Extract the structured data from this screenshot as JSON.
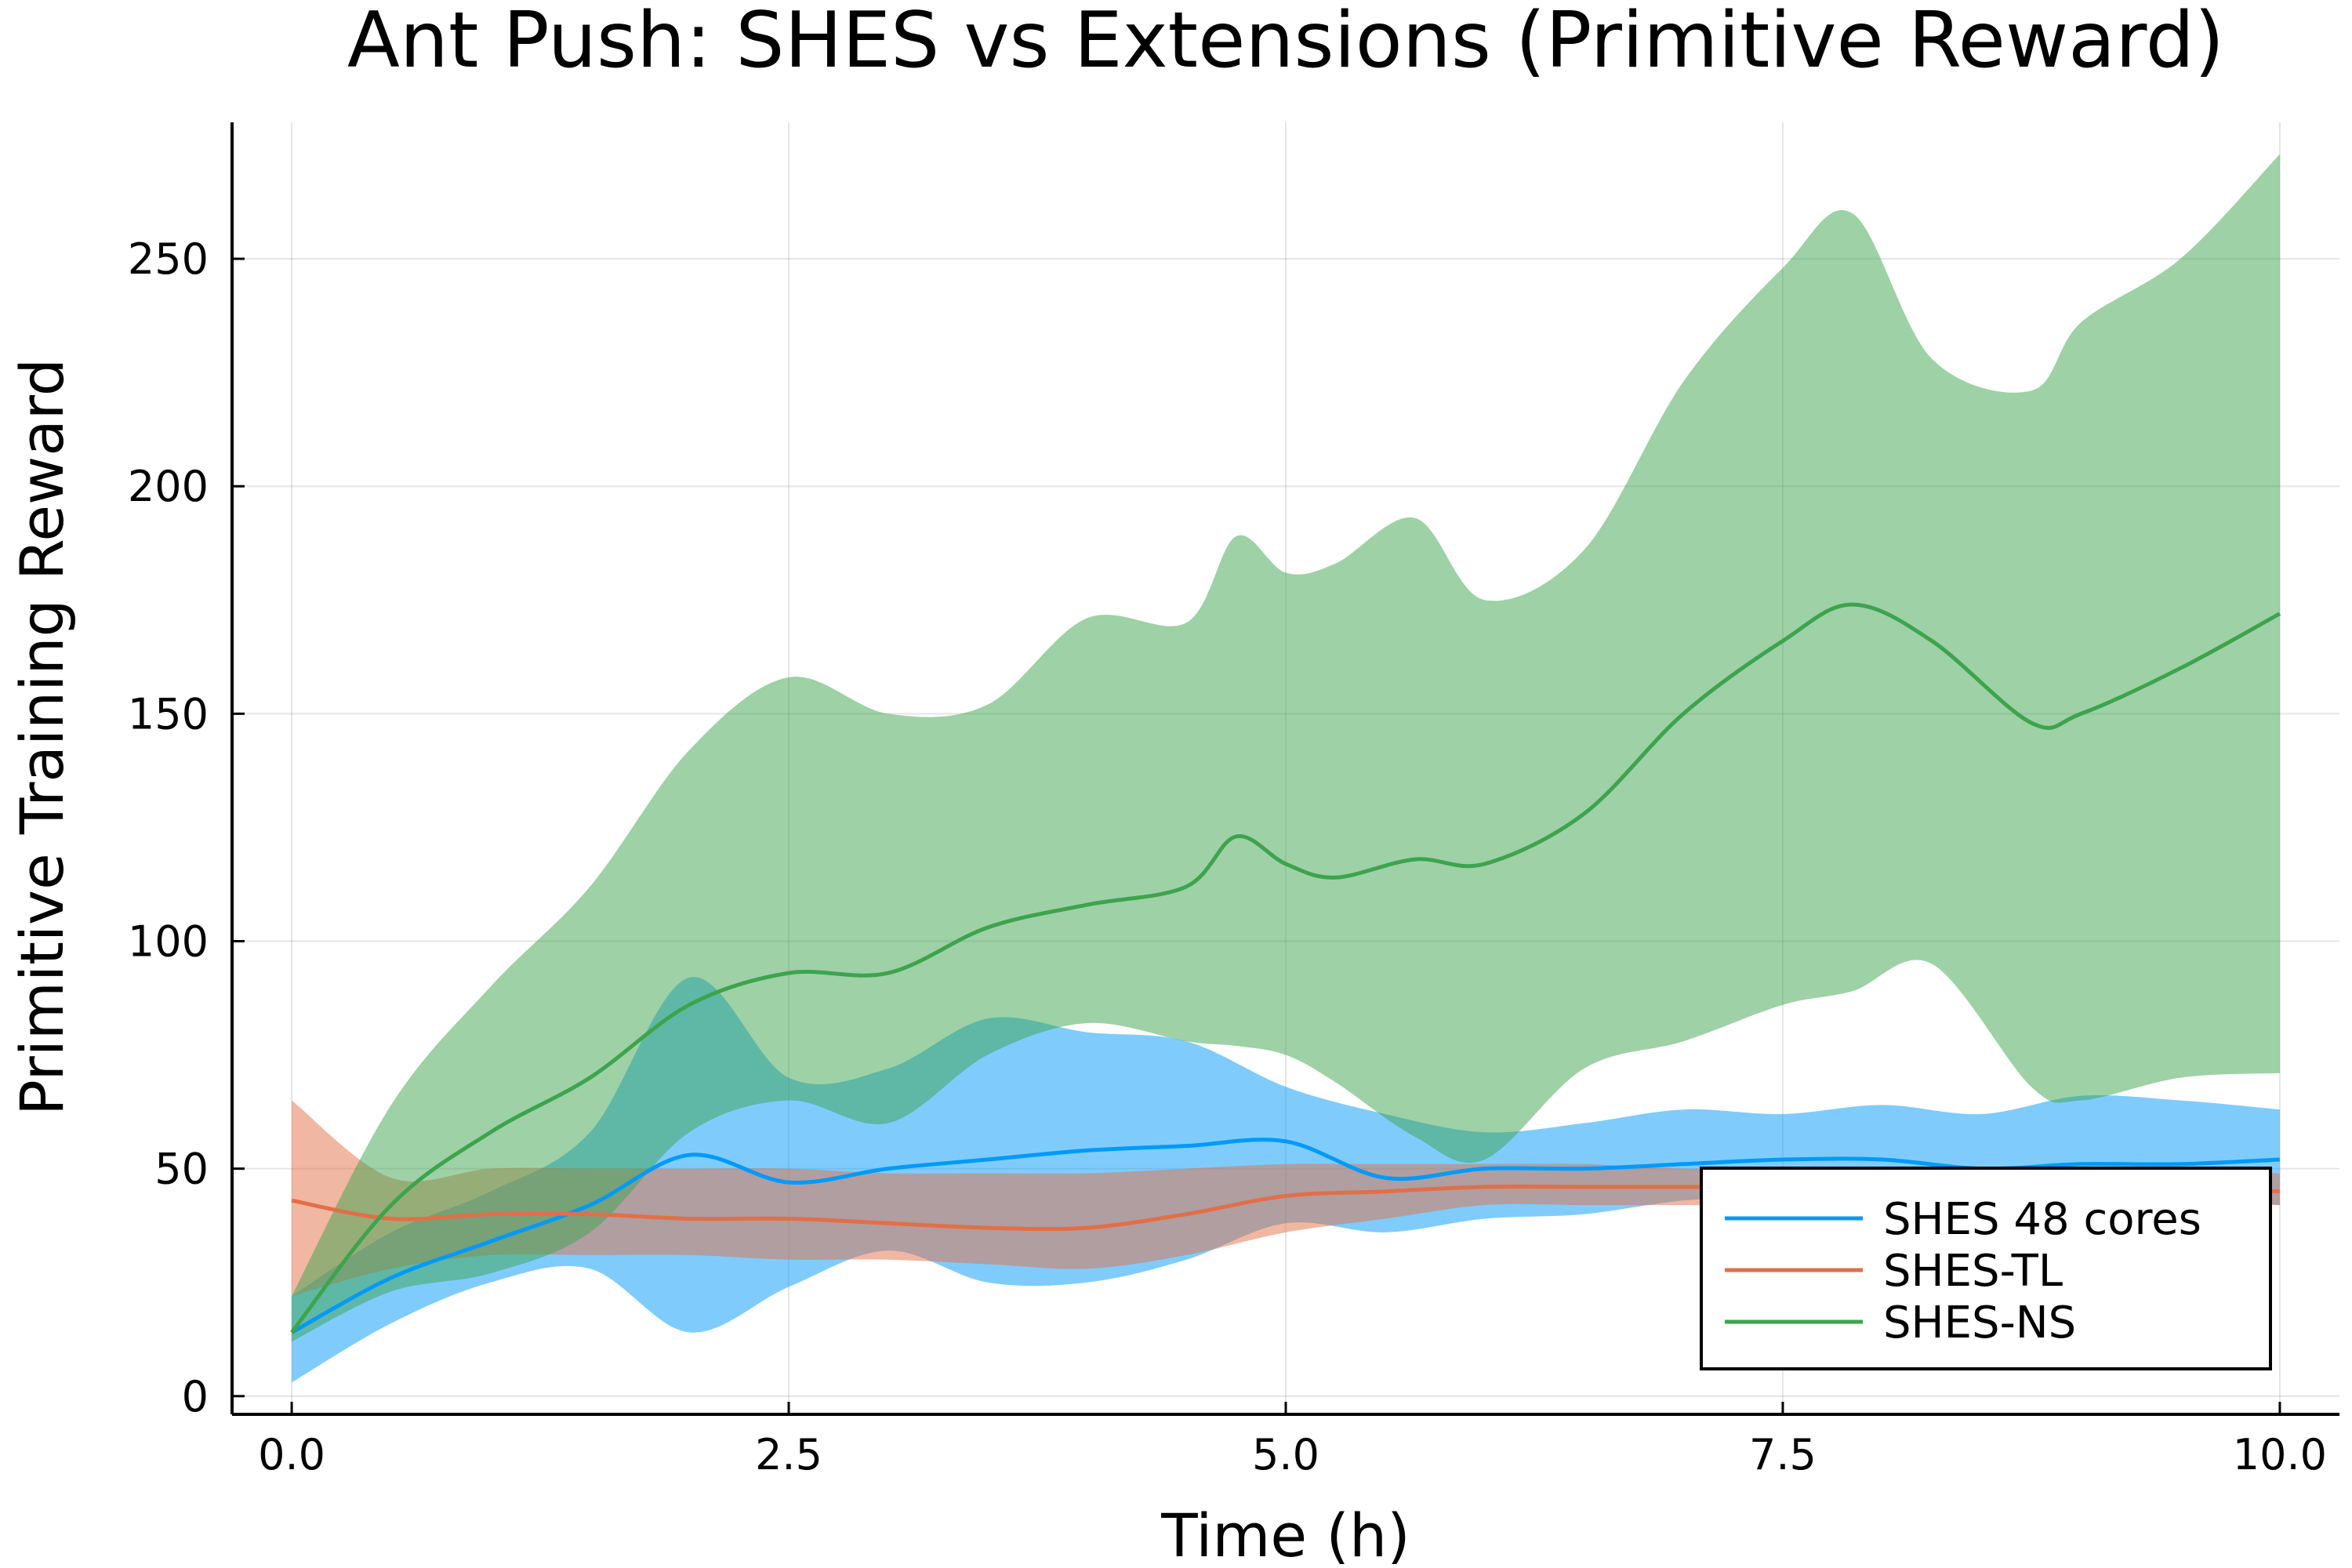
{
  "chart_data": {
    "type": "line",
    "title": "Ant Push: SHES vs Extensions (Primitive Reward)",
    "xlabel": "Time (h)",
    "ylabel": "Primitive Training Reward",
    "xlim": [
      -0.3,
      10.3
    ],
    "ylim": [
      -4,
      280
    ],
    "xticks": [
      0,
      2.5,
      5,
      7.5,
      10
    ],
    "xtick_labels": [
      "0.0",
      "2.5",
      "5.0",
      "7.5",
      "10.0"
    ],
    "yticks": [
      0,
      50,
      100,
      150,
      200,
      250
    ],
    "ytick_labels": [
      "0",
      "50",
      "100",
      "150",
      "200",
      "250"
    ],
    "grid": true,
    "legend_position": "bottom-right",
    "series": [
      {
        "name": "SHES 48 cores",
        "color": "#009AFA",
        "x": [
          0,
          0.5,
          1,
          1.5,
          2,
          2.5,
          3,
          3.5,
          4,
          4.5,
          5,
          5.5,
          6,
          6.5,
          7,
          7.5,
          8,
          8.5,
          9,
          9.5,
          10
        ],
        "mean": [
          14,
          26,
          34,
          42,
          53,
          47,
          50,
          52,
          54,
          55,
          56,
          48,
          50,
          50,
          51,
          52,
          52,
          50,
          51,
          51,
          52
        ],
        "lower": [
          3,
          16,
          25,
          28,
          14,
          24,
          32,
          25,
          25,
          30,
          38,
          36,
          39,
          40,
          43,
          44,
          45,
          47,
          44,
          44,
          42
        ],
        "upper": [
          22,
          36,
          45,
          58,
          92,
          70,
          72,
          83,
          80,
          78,
          68,
          62,
          58,
          60,
          63,
          62,
          64,
          62,
          66,
          65,
          63
        ]
      },
      {
        "name": "SHES-TL",
        "color": "#E26F46",
        "x": [
          0,
          0.5,
          1,
          1.5,
          2,
          2.5,
          3,
          3.5,
          4,
          4.5,
          5,
          5.5,
          6,
          6.5,
          7,
          7.5,
          8,
          8.5,
          9,
          9.5,
          10
        ],
        "mean": [
          43,
          39,
          40,
          40,
          39,
          39,
          38,
          37,
          37,
          40,
          44,
          45,
          46,
          46,
          46,
          46,
          46,
          46,
          46,
          46,
          45
        ],
        "lower": [
          22,
          28,
          31,
          31,
          31,
          30,
          30,
          29,
          28,
          31,
          36,
          39,
          42,
          42,
          42,
          42,
          42,
          42,
          42,
          42,
          42
        ],
        "upper": [
          65,
          48,
          50,
          50,
          50,
          50,
          49,
          49,
          49,
          50,
          51,
          51,
          51,
          51,
          50,
          50,
          50,
          50,
          50,
          50,
          49
        ]
      },
      {
        "name": "SHES-NS",
        "color": "#3DA44D",
        "x": [
          0,
          0.5,
          1,
          1.5,
          2,
          2.5,
          3,
          3.5,
          4,
          4.5,
          4.75,
          5,
          5.25,
          5.65,
          6,
          6.5,
          7,
          7.5,
          7.85,
          8.25,
          8.75,
          9,
          9.5,
          10
        ],
        "mean": [
          14,
          42,
          58,
          70,
          86,
          93,
          93,
          103,
          108,
          112,
          123,
          117,
          114,
          118,
          117,
          128,
          150,
          166,
          174,
          166,
          148,
          150,
          160,
          172
        ],
        "lower": [
          12,
          23,
          27,
          36,
          58,
          65,
          60,
          75,
          82,
          78,
          77,
          75,
          69,
          57,
          52,
          72,
          78,
          86,
          89,
          95,
          68,
          65,
          70,
          71
        ],
        "upper": [
          22,
          64,
          90,
          112,
          142,
          158,
          150,
          152,
          171,
          170,
          189,
          181,
          183,
          193,
          175,
          186,
          223,
          248,
          260,
          228,
          221,
          236,
          250,
          273
        ]
      }
    ]
  }
}
